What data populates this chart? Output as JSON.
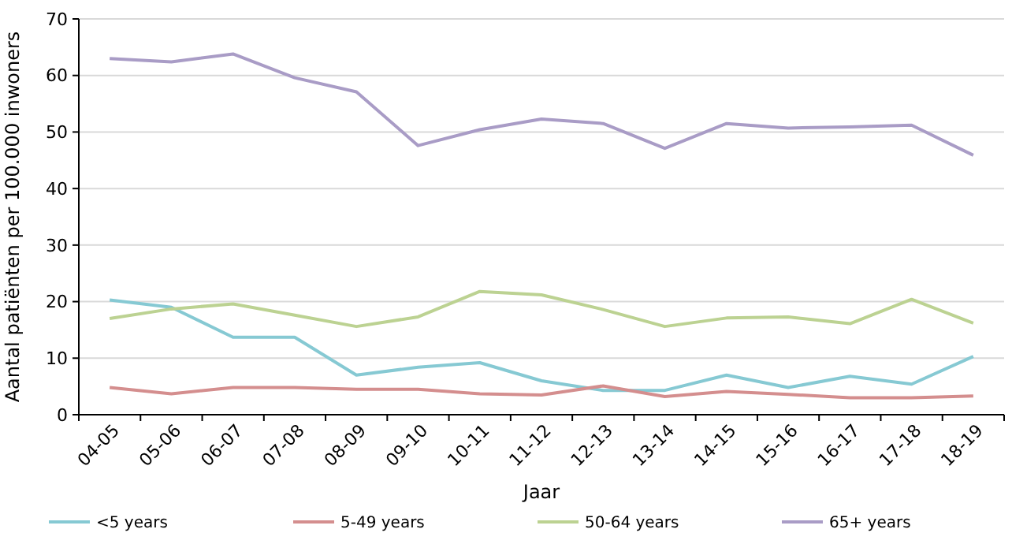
{
  "chart_data": {
    "type": "line",
    "xlabel": "Jaar",
    "ylabel": "Aantal patiënten per 100.000 inwoners",
    "categories": [
      "04-05",
      "05-06",
      "06-07",
      "07-08",
      "08-09",
      "09-10",
      "10-11",
      "11-12",
      "12-13",
      "13-14",
      "14-15",
      "15-16",
      "16-17",
      "17-18",
      "18-19"
    ],
    "series": [
      {
        "name": "<5 years",
        "color": "#86c9d3",
        "values": [
          20.3,
          19,
          13.7,
          13.7,
          7,
          8.4,
          9.2,
          6,
          4.3,
          4.3,
          7,
          4.8,
          6.8,
          5.4,
          10.3
        ]
      },
      {
        "name": "5-49 years",
        "color": "#d48e8e",
        "values": [
          4.8,
          3.7,
          4.8,
          4.8,
          4.5,
          4.5,
          3.7,
          3.5,
          5.1,
          3.2,
          4.1,
          3.6,
          3.0,
          3.0,
          3.3
        ]
      },
      {
        "name": "50-64 years",
        "color": "#bcd292",
        "values": [
          17,
          18.7,
          19.6,
          17.6,
          15.6,
          17.3,
          21.8,
          21.2,
          18.6,
          15.6,
          17.1,
          17.3,
          16.1,
          20.4,
          16.2
        ]
      },
      {
        "name": "65+ years",
        "color": "#a99cc6",
        "values": [
          63,
          62.4,
          63.8,
          59.6,
          57.1,
          47.6,
          50.4,
          52.3,
          51.5,
          47.1,
          51.5,
          50.7,
          50.9,
          51.2,
          45.9
        ]
      }
    ],
    "ylim": [
      0,
      70
    ],
    "yticks": [
      0,
      10,
      20,
      30,
      40,
      50,
      60,
      70
    ],
    "grid": "y",
    "legend": "bottom",
    "marker": "none",
    "line_style": "solid"
  }
}
